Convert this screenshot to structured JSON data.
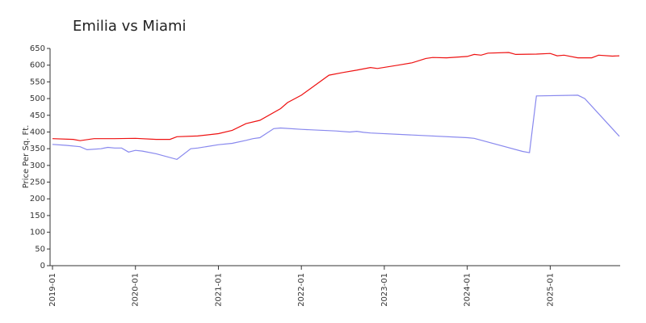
{
  "chart_data": {
    "type": "line",
    "title": "Emilia vs Miami",
    "y_label": "Price Per Sq. Ft.",
    "xlim": [
      "2019-01",
      "2025-11"
    ],
    "xticks": [
      "2019-01",
      "2020-01",
      "2021-01",
      "2022-01",
      "2023-01",
      "2024-01",
      "2025-01"
    ],
    "ylim": [
      0,
      650
    ],
    "yticks": [
      0,
      50,
      100,
      150,
      200,
      250,
      300,
      350,
      400,
      450,
      500,
      550,
      600,
      650
    ],
    "series": [
      {
        "color": "#ee1111",
        "x": [
          "2019-01",
          "2019-04",
          "2019-05",
          "2019-07",
          "2019-10",
          "2020-01",
          "2020-04",
          "2020-06",
          "2020-07",
          "2020-10",
          "2021-01",
          "2021-03",
          "2021-05",
          "2021-07",
          "2021-10",
          "2021-11",
          "2022-01",
          "2022-03",
          "2022-05",
          "2022-07",
          "2022-09",
          "2022-11",
          "2022-12",
          "2023-03",
          "2023-05",
          "2023-07",
          "2023-08",
          "2023-10",
          "2024-01",
          "2024-02",
          "2024-03",
          "2024-04",
          "2024-07",
          "2024-08",
          "2024-11",
          "2025-01",
          "2025-02",
          "2025-03",
          "2025-05",
          "2025-07",
          "2025-08",
          "2025-10",
          "2025-11"
        ],
        "values": [
          380,
          378,
          374,
          380,
          380,
          381,
          378,
          378,
          386,
          388,
          395,
          405,
          425,
          435,
          470,
          488,
          510,
          540,
          570,
          578,
          585,
          593,
          590,
          600,
          607,
          620,
          623,
          622,
          626,
          632,
          630,
          636,
          638,
          632,
          633,
          635,
          628,
          630,
          622,
          622,
          630,
          627,
          628
        ]
      },
      {
        "color": "#8888ee",
        "x": [
          "2019-01",
          "2019-03",
          "2019-05",
          "2019-06",
          "2019-08",
          "2019-09",
          "2019-10",
          "2019-11",
          "2019-12",
          "2020-01",
          "2020-02",
          "2020-04",
          "2020-07",
          "2020-09",
          "2020-10",
          "2021-01",
          "2021-03",
          "2021-05",
          "2021-06",
          "2021-07",
          "2021-09",
          "2021-10",
          "2022-01",
          "2022-06",
          "2022-08",
          "2022-09",
          "2022-10",
          "2022-11",
          "2024-01",
          "2024-02",
          "2024-09",
          "2024-10",
          "2024-11",
          "2025-05",
          "2025-06",
          "2025-11"
        ],
        "values": [
          363,
          360,
          356,
          347,
          350,
          354,
          352,
          352,
          340,
          345,
          343,
          335,
          318,
          350,
          352,
          362,
          366,
          375,
          380,
          383,
          410,
          412,
          408,
          403,
          400,
          402,
          399,
          397,
          383,
          381,
          342,
          338,
          508,
          510,
          500,
          387
        ]
      }
    ]
  }
}
